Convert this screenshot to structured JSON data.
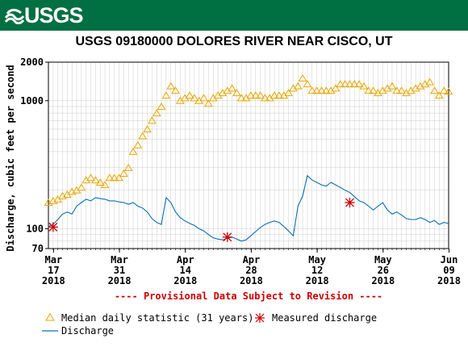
{
  "header": {
    "logo_text": "USGS",
    "brand_color": "#006f41"
  },
  "chart_data": {
    "type": "line",
    "title": "USGS 09180000 DOLORES RIVER NEAR CISCO, UT",
    "ylabel": "Discharge, cubic feet per second",
    "yscale": "log",
    "ylim": [
      70,
      2000
    ],
    "y_ticks": [
      "2000",
      "1000",
      "100",
      "70"
    ],
    "x_ticks": [
      {
        "month": "Mar",
        "day": "17",
        "year": "2018"
      },
      {
        "month": "Mar",
        "day": "31",
        "year": "2018"
      },
      {
        "month": "Apr",
        "day": "14",
        "year": "2018"
      },
      {
        "month": "Apr",
        "day": "28",
        "year": "2018"
      },
      {
        "month": "May",
        "day": "12",
        "year": "2018"
      },
      {
        "month": "May",
        "day": "26",
        "year": "2018"
      },
      {
        "month": "Jun",
        "day": "09",
        "year": "2018"
      }
    ],
    "x_range_days": [
      0,
      85
    ],
    "provisional_note": "---- Provisional Data Subject to Revision ----",
    "grid": true,
    "legend_position": "bottom",
    "colors": {
      "median": "#e6a700",
      "discharge": "#0a6fb0",
      "measured": "#cc0000",
      "grid": "#cccccc"
    },
    "series": [
      {
        "name": "Median daily statistic (31 years)",
        "marker": "triangle",
        "day": [
          0,
          1,
          2,
          3,
          4,
          5,
          6,
          7,
          8,
          9,
          10,
          11,
          12,
          13,
          14,
          15,
          16,
          17,
          18,
          19,
          20,
          21,
          22,
          23,
          24,
          25,
          26,
          27,
          28,
          29,
          30,
          31,
          32,
          33,
          34,
          35,
          36,
          37,
          38,
          39,
          40,
          41,
          42,
          43,
          44,
          45,
          46,
          47,
          48,
          49,
          50,
          51,
          52,
          53,
          54,
          55,
          56,
          57,
          58,
          59,
          60,
          61,
          62,
          63,
          64,
          65,
          66,
          67,
          68,
          69,
          70,
          71,
          72,
          73,
          74,
          75,
          76,
          77,
          78,
          79,
          80,
          81,
          82,
          83,
          84,
          85
        ],
        "values": [
          160,
          165,
          170,
          180,
          185,
          195,
          200,
          210,
          240,
          250,
          240,
          230,
          220,
          250,
          250,
          250,
          270,
          300,
          400,
          450,
          530,
          600,
          700,
          800,
          900,
          1100,
          1300,
          1200,
          1000,
          1050,
          1100,
          1050,
          1000,
          1050,
          950,
          1050,
          1100,
          1150,
          1200,
          1250,
          1150,
          1050,
          1050,
          1100,
          1100,
          1100,
          1050,
          1050,
          1100,
          1100,
          1100,
          1150,
          1250,
          1300,
          1500,
          1350,
          1200,
          1200,
          1200,
          1200,
          1200,
          1250,
          1350,
          1350,
          1350,
          1350,
          1350,
          1300,
          1200,
          1200,
          1150,
          1200,
          1250,
          1300,
          1200,
          1200,
          1150,
          1200,
          1250,
          1300,
          1350,
          1400,
          1200,
          1100,
          1200,
          1180
        ]
      },
      {
        "name": "Discharge",
        "day": [
          0,
          1,
          2,
          3,
          4,
          5,
          6,
          7,
          8,
          9,
          10,
          11,
          12,
          13,
          14,
          15,
          16,
          17,
          18,
          19,
          20,
          21,
          22,
          23,
          24,
          25,
          26,
          27,
          28,
          29,
          30,
          31,
          32,
          33,
          34,
          35,
          36,
          37,
          38,
          39,
          40,
          41,
          42,
          43,
          44,
          45,
          46,
          47,
          48,
          49,
          50,
          51,
          52,
          53,
          54,
          55,
          56,
          57,
          58,
          59,
          60,
          61,
          62,
          63,
          64,
          65,
          66,
          67,
          68,
          69,
          70,
          71,
          72,
          73,
          74,
          75,
          76,
          77,
          78,
          79,
          80,
          81,
          82,
          83,
          84,
          85
        ],
        "values": [
          104,
          108,
          118,
          130,
          135,
          130,
          150,
          160,
          170,
          165,
          175,
          172,
          170,
          165,
          165,
          162,
          160,
          155,
          160,
          150,
          145,
          135,
          120,
          112,
          108,
          175,
          160,
          135,
          122,
          115,
          110,
          106,
          100,
          96,
          90,
          85,
          83,
          82,
          84,
          86,
          83,
          80,
          82,
          88,
          95,
          102,
          108,
          112,
          115,
          112,
          104,
          96,
          88,
          150,
          180,
          260,
          240,
          230,
          220,
          215,
          230,
          220,
          210,
          200,
          192,
          178,
          165,
          160,
          150,
          140,
          150,
          160,
          140,
          130,
          135,
          128,
          120,
          118,
          118,
          122,
          118,
          112,
          116,
          108,
          112,
          110
        ]
      },
      {
        "name": "Measured discharge",
        "marker": "asterisk",
        "day": [
          1,
          38,
          64
        ],
        "values": [
          103,
          86,
          160
        ]
      }
    ]
  }
}
